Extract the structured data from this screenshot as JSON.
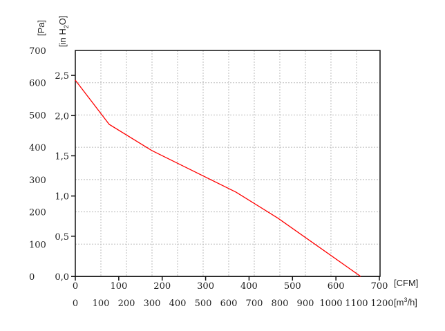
{
  "chart_data": {
    "type": "line",
    "title": "",
    "y_units": {
      "primary": "[Pa]",
      "secondary_prefix": "[in H",
      "secondary_sub": "2",
      "secondary_suffix": "O]"
    },
    "x_units": {
      "primary": "[CFM]",
      "secondary_prefix": "[m",
      "secondary_sup": "3",
      "secondary_suffix": "/h]"
    },
    "ylim_pa": [
      0,
      700
    ],
    "xlim_m3h": [
      0,
      1200
    ],
    "pa_ticks": [
      "0",
      "100",
      "200",
      "300",
      "400",
      "500",
      "600",
      "700"
    ],
    "inh2o_ticks": [
      "0,0",
      "0,5",
      "1,0",
      "1,5",
      "2,0",
      "2,5"
    ],
    "cfm_ticks": [
      "0",
      "100",
      "200",
      "300",
      "400",
      "500",
      "600",
      "700"
    ],
    "m3h_ticks": [
      "0",
      "100",
      "200",
      "300",
      "400",
      "500",
      "600",
      "700",
      "800",
      "900",
      "1000",
      "1100",
      "1200"
    ],
    "grid": true,
    "line_color": "#ff0000",
    "series": [
      {
        "x_cfm": [
          0,
          78,
          176,
          370,
          467,
          657
        ],
        "y_pa": [
          608,
          471,
          390,
          261,
          180,
          0
        ]
      }
    ]
  }
}
